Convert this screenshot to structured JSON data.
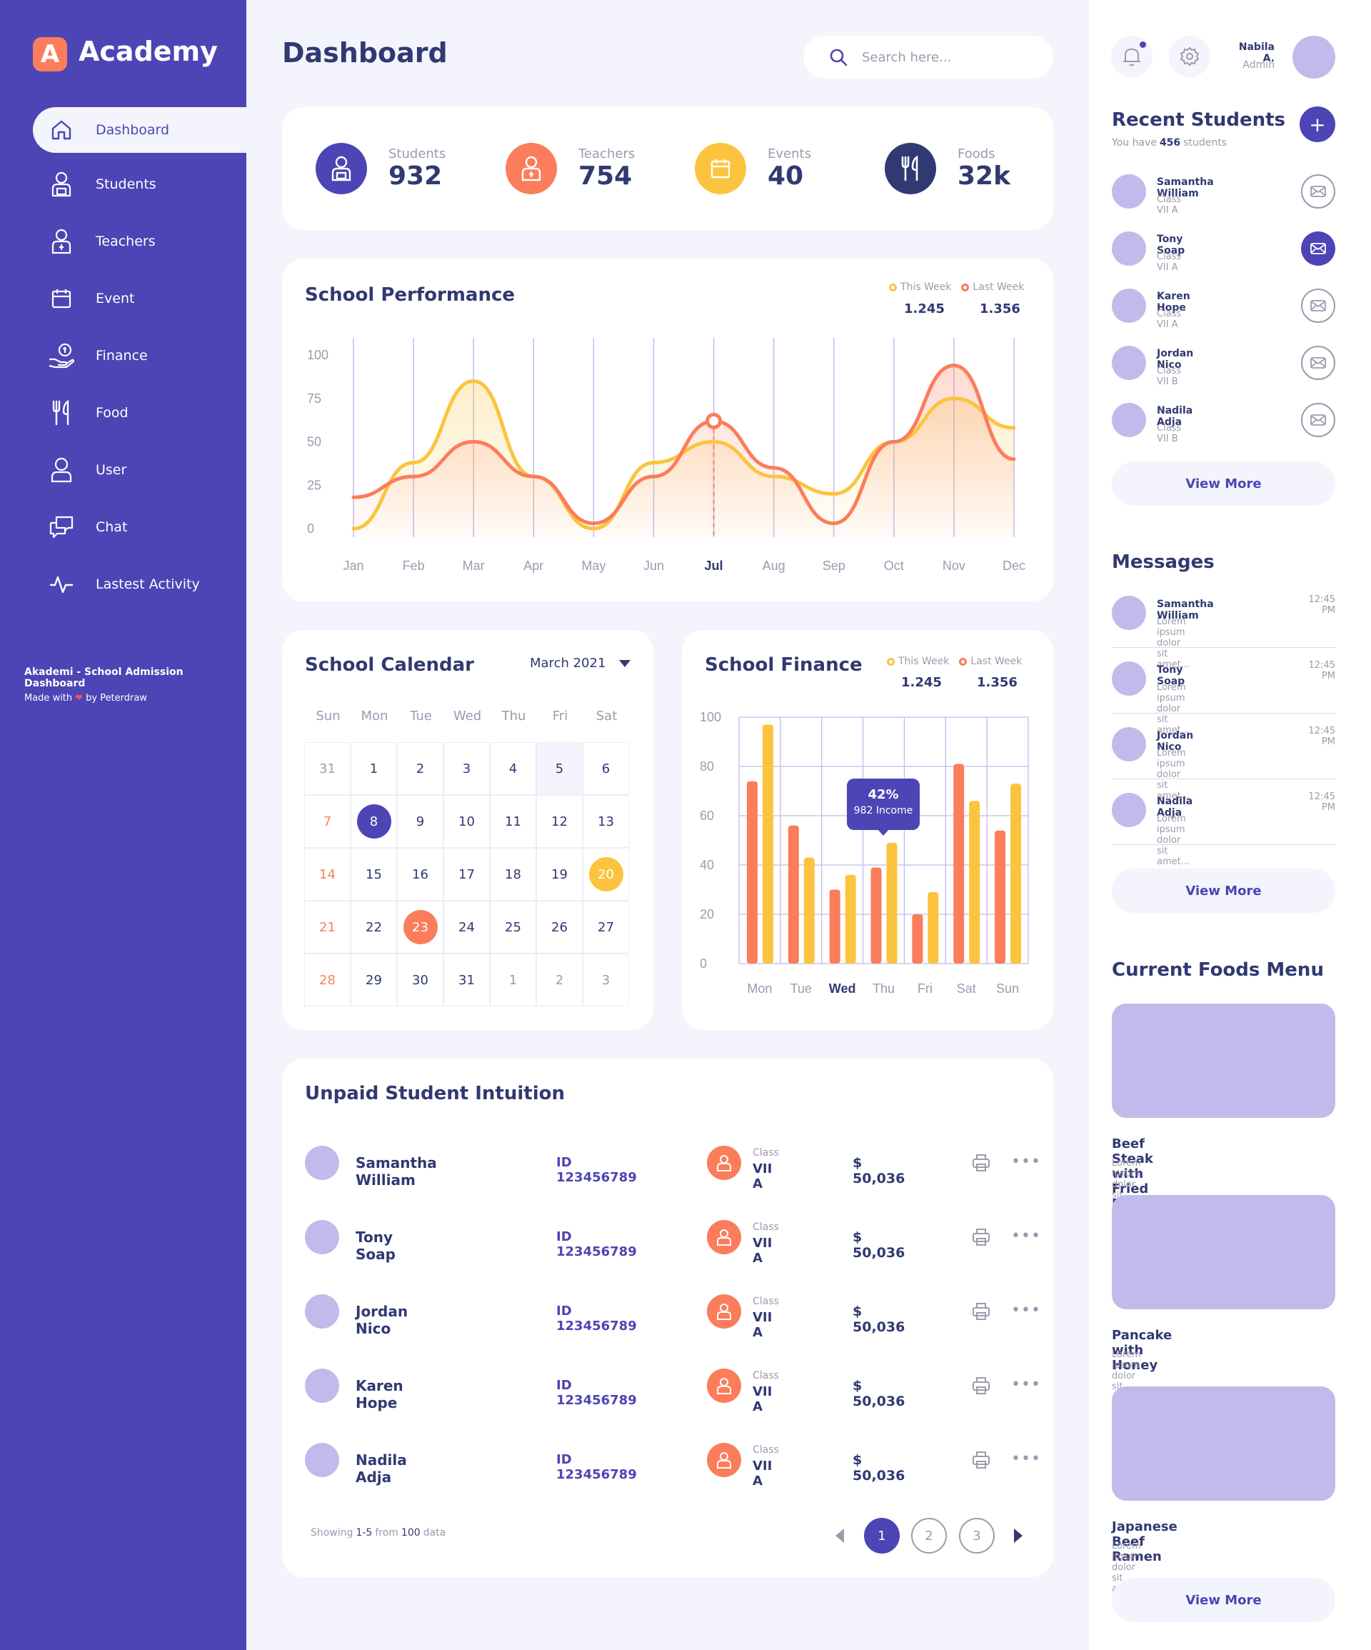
{
  "brand": {
    "logo_letter": "A",
    "name": "Academy"
  },
  "sidebar": {
    "items": [
      {
        "label": "Dashboard",
        "icon": "home-icon"
      },
      {
        "label": "Students",
        "icon": "student-icon"
      },
      {
        "label": "Teachers",
        "icon": "teacher-icon"
      },
      {
        "label": "Event",
        "icon": "calendar-icon"
      },
      {
        "label": "Finance",
        "icon": "finance-icon"
      },
      {
        "label": "Food",
        "icon": "food-icon"
      },
      {
        "label": "User",
        "icon": "user-icon"
      },
      {
        "label": "Chat",
        "icon": "chat-icon"
      },
      {
        "label": "Lastest Activity",
        "icon": "activity-icon"
      }
    ],
    "footer_title": "Akademi - School Admission Dashboard",
    "footer_made": "Made with",
    "footer_by": "by Peterdraw"
  },
  "header": {
    "title": "Dashboard",
    "search_placeholder": "Search here..."
  },
  "user": {
    "name": "Nabila A.",
    "role": "Admin"
  },
  "stats": [
    {
      "label": "Students",
      "value": "932",
      "color": "#4D44B5",
      "icon": "student-icon"
    },
    {
      "label": "Teachers",
      "value": "754",
      "color": "#FB7D5B",
      "icon": "teacher-icon"
    },
    {
      "label": "Events",
      "value": "40",
      "color": "#FCC43E",
      "icon": "calendar-icon"
    },
    {
      "label": "Foods",
      "value": "32k",
      "color": "#303972",
      "icon": "food-icon"
    }
  ],
  "performance": {
    "title": "School Performance",
    "legend": [
      {
        "name": "This Week",
        "value": "1.245",
        "color": "#FCC43E"
      },
      {
        "name": "Last Week",
        "value": "1.356",
        "color": "#FB7D5B"
      }
    ],
    "chart_data": {
      "type": "area",
      "categories": [
        "Jan",
        "Feb",
        "Mar",
        "Apr",
        "May",
        "Jun",
        "Jul",
        "Aug",
        "Sep",
        "Oct",
        "Nov",
        "Dec"
      ],
      "y_ticks": [
        "100",
        "75",
        "50",
        "25",
        "0"
      ],
      "ylim": [
        0,
        100
      ],
      "highlight_category": "Jul",
      "series": [
        {
          "name": "This Week",
          "color": "#FCC43E",
          "values": [
            0,
            38,
            85,
            30,
            0,
            38,
            50,
            30,
            20,
            50,
            75,
            58
          ]
        },
        {
          "name": "Last Week",
          "color": "#FB7D5B",
          "values": [
            18,
            30,
            50,
            30,
            3,
            30,
            62,
            35,
            3,
            50,
            94,
            40
          ]
        }
      ]
    }
  },
  "calendar": {
    "title": "School Calendar",
    "month": "March 2021",
    "weekdays": [
      "Sun",
      "Mon",
      "Tue",
      "Wed",
      "Thu",
      "Fri",
      "Sat"
    ],
    "days": [
      "31",
      "1",
      "2",
      "3",
      "4",
      "5",
      "6",
      "7",
      "8",
      "9",
      "10",
      "11",
      "12",
      "13",
      "14",
      "15",
      "16",
      "17",
      "18",
      "19",
      "20",
      "21",
      "22",
      "23",
      "24",
      "25",
      "26",
      "27",
      "28",
      "29",
      "30",
      "31",
      "1",
      "2",
      "3"
    ]
  },
  "finance": {
    "title": "School Finance",
    "legend": [
      {
        "name": "This Week",
        "value": "1.245",
        "color": "#FCC43E"
      },
      {
        "name": "Last Week",
        "value": "1.356",
        "color": "#FB7D5B"
      }
    ],
    "tooltip": {
      "pct": "42%",
      "text": "982 Income"
    },
    "chart_data": {
      "type": "bar",
      "categories": [
        "Mon",
        "Tue",
        "Wed",
        "Thu",
        "Fri",
        "Sat",
        "Sun"
      ],
      "y_ticks": [
        "100",
        "80",
        "60",
        "40",
        "20",
        "0"
      ],
      "ylim": [
        0,
        100
      ],
      "highlight_category": "Wed",
      "series": [
        {
          "name": "Last Week",
          "color": "#FB7D5B",
          "values": [
            74,
            56,
            30,
            39,
            20,
            81,
            54
          ]
        },
        {
          "name": "This Week",
          "color": "#FCC43E",
          "values": [
            97,
            43,
            36,
            49,
            29,
            66,
            73
          ]
        }
      ]
    }
  },
  "unpaid": {
    "title": "Unpaid Student Intuition",
    "class_label": "Class",
    "rows": [
      {
        "name": "Samantha William",
        "id": "ID 123456789",
        "class": "VII A",
        "amount": "$ 50,036"
      },
      {
        "name": "Tony Soap",
        "id": "ID 123456789",
        "class": "VII A",
        "amount": "$ 50,036"
      },
      {
        "name": "Jordan Nico",
        "id": "ID 123456789",
        "class": "VII A",
        "amount": "$ 50,036"
      },
      {
        "name": "Karen Hope",
        "id": "ID 123456789",
        "class": "VII A",
        "amount": "$ 50,036"
      },
      {
        "name": "Nadila Adja",
        "id": "ID 123456789",
        "class": "VII A",
        "amount": "$ 50,036"
      }
    ],
    "showing": {
      "prefix": "Showing",
      "range": "1-5",
      "from": "from",
      "total": "100",
      "suffix": "data"
    },
    "pages": [
      "1",
      "2",
      "3"
    ]
  },
  "recent_students": {
    "title": "Recent Students",
    "subtitle_prefix": "You have",
    "subtitle_count": "456",
    "subtitle_suffix": "students",
    "items": [
      {
        "name": "Samantha William",
        "class": "Class VII A"
      },
      {
        "name": "Tony Soap",
        "class": "Class VII A"
      },
      {
        "name": "Karen Hope",
        "class": "Class VII A"
      },
      {
        "name": "Jordan Nico",
        "class": "Class VII B"
      },
      {
        "name": "Nadila Adja",
        "class": "Class VII B"
      }
    ],
    "view_more": "View More"
  },
  "messages": {
    "title": "Messages",
    "items": [
      {
        "name": "Samantha William",
        "text": "Lorem ipsum dolor sit amet...",
        "time": "12:45 PM"
      },
      {
        "name": "Tony Soap",
        "text": "Lorem ipsum dolor sit amet...",
        "time": "12:45 PM"
      },
      {
        "name": "Jordan Nico",
        "text": "Lorem ipsum dolor sit amet...",
        "time": "12:45 PM"
      },
      {
        "name": "Nadila Adja",
        "text": "Lorem ipsum dolor sit amet...",
        "time": "12:45 PM"
      }
    ],
    "view_more": "View More"
  },
  "foods": {
    "title": "Current Foods Menu",
    "items": [
      {
        "name": "Beef Steak with Fried Potato",
        "desc": "Lorem ipsum dolor sit amet..."
      },
      {
        "name": "Pancake with Honey",
        "desc": "Lorem ipsum dolor sit amet..."
      },
      {
        "name": "Japanese Beef Ramen",
        "desc": "Lorem ipsum dolor sit amet..."
      }
    ],
    "view_more": "View More"
  }
}
